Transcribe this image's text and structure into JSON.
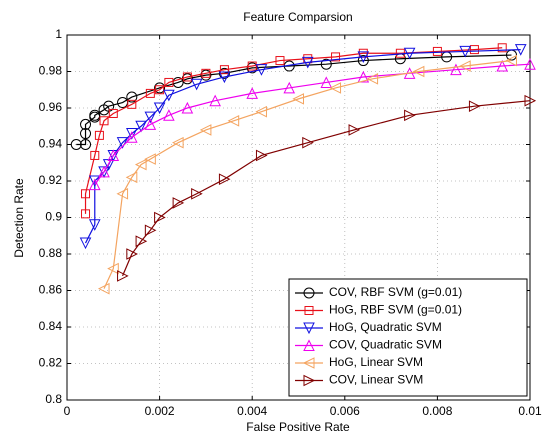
{
  "chart_data": {
    "type": "line",
    "title": "Feature Comparsion",
    "x_label": "False Positive Rate",
    "y_label": "Detection Rate",
    "xlim": [
      0,
      0.01
    ],
    "ylim": [
      0.8,
      1
    ],
    "xticks": [
      0,
      0.002,
      0.004,
      0.006,
      0.008,
      0.01
    ],
    "yticks": [
      0.8,
      0.82,
      0.84,
      0.86,
      0.88,
      0.9,
      0.92,
      0.94,
      0.96,
      0.98,
      1
    ],
    "grid": true,
    "legend_loc": "lower right",
    "series": [
      {
        "name": "COV, RBF SVM (g=0.01)",
        "color": "#000000",
        "marker": "circle",
        "x": [
          0.0002,
          0.0004,
          0.0004,
          0.0004,
          0.0006,
          0.0006,
          0.0008,
          0.0009,
          0.0012,
          0.0014,
          0.002,
          0.0024,
          0.0026,
          0.003,
          0.0034,
          0.004,
          0.0048,
          0.0056,
          0.0064,
          0.0072,
          0.0082,
          0.0096
        ],
        "values": [
          0.94,
          0.94,
          0.946,
          0.951,
          0.955,
          0.956,
          0.959,
          0.961,
          0.963,
          0.966,
          0.971,
          0.974,
          0.976,
          0.978,
          0.979,
          0.982,
          0.983,
          0.984,
          0.986,
          0.987,
          0.988,
          0.989
        ]
      },
      {
        "name": "HoG, RBF SVM (g=0.01)",
        "color": "#e8101a",
        "marker": "square",
        "x": [
          0.0004,
          0.0004,
          0.0006,
          0.0007,
          0.0008,
          0.001,
          0.0014,
          0.0018,
          0.002,
          0.0022,
          0.0026,
          0.003,
          0.0034,
          0.004,
          0.0046,
          0.0052,
          0.0058,
          0.0064,
          0.0072,
          0.008,
          0.0088,
          0.0094
        ],
        "values": [
          0.902,
          0.913,
          0.934,
          0.945,
          0.953,
          0.957,
          0.962,
          0.968,
          0.97,
          0.974,
          0.977,
          0.979,
          0.981,
          0.983,
          0.986,
          0.987,
          0.988,
          0.99,
          0.99,
          0.991,
          0.992,
          0.993
        ]
      },
      {
        "name": "HoG, Quadratic SVM",
        "color": "#1010e0",
        "marker": "tri-down",
        "x": [
          0.0004,
          0.0006,
          0.0006,
          0.0008,
          0.0009,
          0.001,
          0.0012,
          0.0014,
          0.0016,
          0.0018,
          0.002,
          0.0022,
          0.0028,
          0.0034,
          0.0042,
          0.0052,
          0.0064,
          0.0074,
          0.0086,
          0.0098
        ],
        "values": [
          0.886,
          0.896,
          0.92,
          0.925,
          0.929,
          0.934,
          0.941,
          0.946,
          0.95,
          0.955,
          0.96,
          0.967,
          0.973,
          0.977,
          0.981,
          0.985,
          0.988,
          0.99,
          0.991,
          0.992
        ]
      },
      {
        "name": "COV, Quadratic SVM",
        "color": "#ee00ee",
        "marker": "tri-up",
        "x": [
          0.0006,
          0.0008,
          0.001,
          0.0014,
          0.0018,
          0.0022,
          0.0026,
          0.0032,
          0.004,
          0.0048,
          0.0056,
          0.0064,
          0.0074,
          0.0084,
          0.0094,
          0.01
        ],
        "values": [
          0.918,
          0.925,
          0.934,
          0.944,
          0.951,
          0.956,
          0.96,
          0.964,
          0.968,
          0.971,
          0.974,
          0.977,
          0.979,
          0.981,
          0.983,
          0.984
        ]
      },
      {
        "name": "HoG, Linear SVM",
        "color": "#f4a460",
        "marker": "tri-left",
        "x": [
          0.0008,
          0.001,
          0.0012,
          0.0014,
          0.0016,
          0.0018,
          0.0024,
          0.003,
          0.0036,
          0.0042,
          0.005,
          0.0058,
          0.0066,
          0.0076,
          0.0086,
          0.0096
        ],
        "values": [
          0.861,
          0.872,
          0.913,
          0.922,
          0.929,
          0.932,
          0.941,
          0.948,
          0.953,
          0.958,
          0.965,
          0.971,
          0.976,
          0.98,
          0.983,
          0.986
        ]
      },
      {
        "name": "COV, Linear SVM",
        "color": "#800000",
        "marker": "tri-right",
        "x": [
          0.0012,
          0.0014,
          0.0016,
          0.0018,
          0.002,
          0.0024,
          0.0028,
          0.0034,
          0.0042,
          0.0052,
          0.0062,
          0.0074,
          0.0088,
          0.01
        ],
        "values": [
          0.868,
          0.88,
          0.887,
          0.893,
          0.9,
          0.908,
          0.913,
          0.921,
          0.934,
          0.941,
          0.948,
          0.956,
          0.961,
          0.964
        ]
      }
    ]
  }
}
